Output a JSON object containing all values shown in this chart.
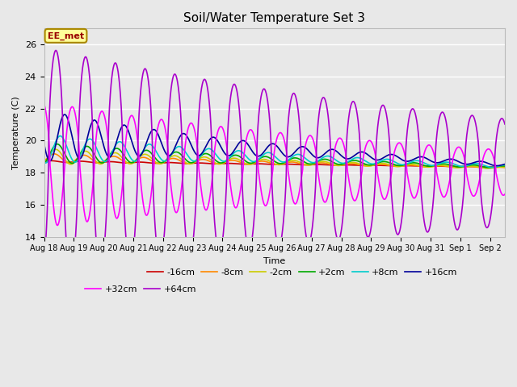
{
  "title": "Soil/Water Temperature Set 3",
  "xlabel": "Time",
  "ylabel": "Temperature (C)",
  "ylim": [
    14,
    27
  ],
  "xlim_days": [
    0,
    15.5
  ],
  "xtick_labels": [
    "Aug 18",
    "Aug 19",
    "Aug 20",
    "Aug 21",
    "Aug 22",
    "Aug 23",
    "Aug 24",
    "Aug 25",
    "Aug 26",
    "Aug 27",
    "Aug 28",
    "Aug 29",
    "Aug 30",
    "Aug 31",
    "Sep 1",
    "Sep 2"
  ],
  "ytick_values": [
    14,
    16,
    18,
    20,
    22,
    24,
    26
  ],
  "series_order": [
    "-16cm",
    "-8cm",
    "-2cm",
    "+2cm",
    "+8cm",
    "+16cm",
    "+32cm",
    "+64cm"
  ],
  "series": {
    "-16cm": {
      "color": "#cc0000",
      "lw": 1.2
    },
    "-8cm": {
      "color": "#ff8800",
      "lw": 1.2
    },
    "-2cm": {
      "color": "#cccc00",
      "lw": 1.2
    },
    "+2cm": {
      "color": "#00aa00",
      "lw": 1.2
    },
    "+8cm": {
      "color": "#00cccc",
      "lw": 1.2
    },
    "+16cm": {
      "color": "#000099",
      "lw": 1.2
    },
    "+32cm": {
      "color": "#ff00ff",
      "lw": 1.2
    },
    "+64cm": {
      "color": "#aa00cc",
      "lw": 1.2
    }
  },
  "annotation_text": "EE_met",
  "annotation_color": "#990000",
  "annotation_bg": "#ffff99",
  "annotation_edge": "#aa8800",
  "bg_color": "#e8e8e8",
  "grid_color": "#ffffff"
}
